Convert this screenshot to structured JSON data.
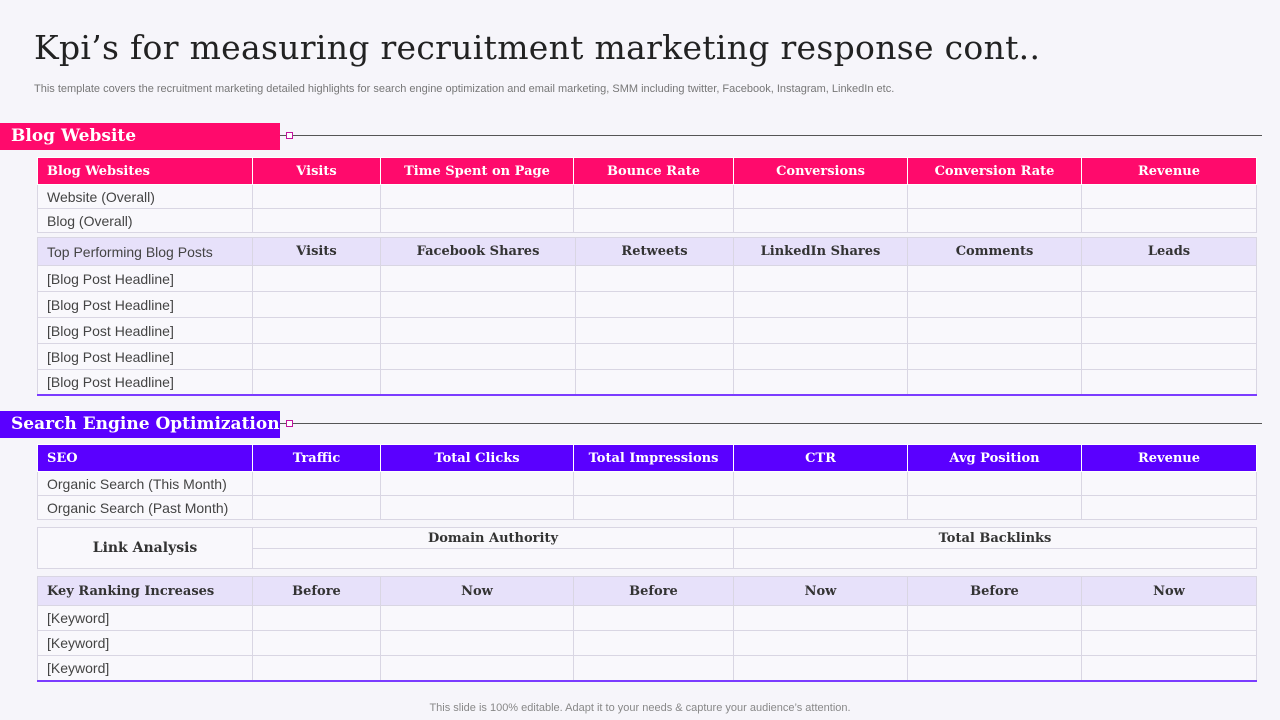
{
  "title": "Kpi’s for measuring recruitment marketing response cont..",
  "subtitle": "This template covers the recruitment marketing detailed highlights for search engine optimization and email marketing, SMM including twitter, Facebook, Instagram, LinkedIn etc.",
  "colors": {
    "pink": "#ff0a6c",
    "purple": "#5a00ff",
    "lavender": "#e7e1fa"
  },
  "blog": {
    "section_title": "Blog Website",
    "headers": [
      "Blog Websites",
      "Visits",
      "Time Spent on Page",
      "Bounce Rate",
      "Conversions",
      "Conversion Rate",
      "Revenue"
    ],
    "rows": [
      "Website (Overall)",
      "Blog (Overall)"
    ],
    "posts_headers": [
      "Top Performing Blog Posts",
      "Visits",
      "Facebook Shares",
      "Retweets",
      "LinkedIn Shares",
      "Comments",
      "Leads"
    ],
    "posts": [
      "[Blog Post Headline]",
      "[Blog Post Headline]",
      "[Blog Post Headline]",
      "[Blog Post Headline]",
      "[Blog Post Headline]"
    ]
  },
  "seo": {
    "section_title": "Search Engine Optimization",
    "headers": [
      "SEO",
      "Traffic",
      "Total Clicks",
      "Total Impressions",
      "CTR",
      "Avg Position",
      "Revenue"
    ],
    "rows": [
      "Organic Search (This Month)",
      "Organic Search (Past Month)"
    ],
    "link_analysis": {
      "label": "Link Analysis",
      "col1": "Domain Authority",
      "col2": "Total Backlinks"
    },
    "ranking_headers": [
      "Key Ranking Increases",
      "Before",
      "Now",
      "Before",
      "Now",
      "Before",
      "Now"
    ],
    "keywords": [
      "[Keyword]",
      "[Keyword]",
      "[Keyword]"
    ]
  },
  "footer": "This slide is 100% editable. Adapt it to your needs & capture your audience’s attention."
}
